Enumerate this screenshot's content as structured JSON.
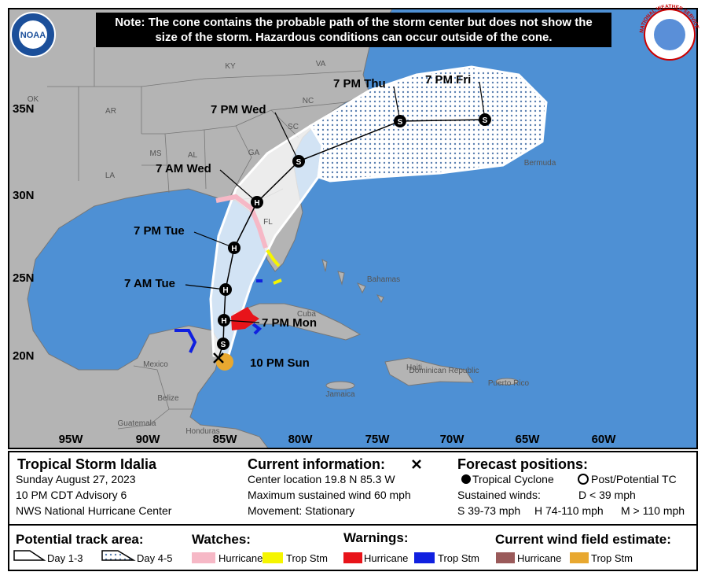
{
  "note": "Note: The cone contains the probable path of the storm center but does not show the size of the storm. Hazardous conditions can occur outside of the cone.",
  "logos": {
    "noaa": "NOAA",
    "nws": "NATIONAL WEATHER SERVICE"
  },
  "map": {
    "lon_labels": [
      "95W",
      "90W",
      "85W",
      "80W",
      "75W",
      "70W",
      "65W",
      "60W"
    ],
    "lat_labels": [
      "35N",
      "30N",
      "25N",
      "20N"
    ],
    "places": [
      "OK",
      "AR",
      "MS",
      "AL",
      "GA",
      "SC",
      "NC",
      "VA",
      "KY",
      "LA",
      "FL",
      "Bermuda",
      "Bahamas",
      "Cuba",
      "Mexico",
      "Belize",
      "Guatemala",
      "Honduras",
      "Jamaica",
      "Haiti",
      "Dominican Republic",
      "Puerto Rico"
    ],
    "forecast_points": [
      {
        "label": "10 PM Sun",
        "symbol": null
      },
      {
        "label": null,
        "symbol": "S"
      },
      {
        "label": "7 PM Mon",
        "symbol": "H"
      },
      {
        "label": "7 AM Tue",
        "symbol": "H"
      },
      {
        "label": "7 PM Tue",
        "symbol": "H"
      },
      {
        "label": "7 AM Wed",
        "symbol": "H"
      },
      {
        "label": "7 PM Wed",
        "symbol": "S"
      },
      {
        "label": "7 PM Thu",
        "symbol": "S"
      },
      {
        "label": "7 PM Fri",
        "symbol": "S"
      }
    ]
  },
  "info": {
    "title": "Tropical Storm Idalia",
    "lines": [
      "Sunday August 27, 2023",
      "10 PM CDT Advisory 6",
      "NWS National Hurricane Center"
    ],
    "current_heading": "Current information:",
    "current_lines": [
      "Center location 19.8 N 85.3 W",
      "Maximum sustained wind 60 mph",
      "Movement: Stationary"
    ],
    "forecast_heading": "Forecast positions:",
    "tropical_cyclone": "Tropical Cyclone",
    "post_tc": "Post/Potential TC",
    "sustained": "Sustained winds:",
    "d": "D < 39 mph",
    "s": "S 39-73 mph",
    "h": "H 74-110 mph",
    "m": "M > 110 mph"
  },
  "legend": {
    "track_heading": "Potential track area:",
    "day13": "Day 1-3",
    "day45": "Day 4-5",
    "watches": "Watches:",
    "watch_hurricane": "Hurricane",
    "watch_ts": "Trop Stm",
    "warnings": "Warnings:",
    "warn_hurricane": "Hurricane",
    "warn_ts": "Trop Stm",
    "wind": "Current wind field estimate:",
    "wind_hurricane": "Hurricane",
    "wind_ts": "Trop Stm"
  }
}
